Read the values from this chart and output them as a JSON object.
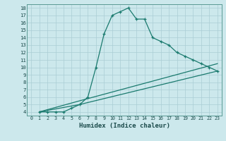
{
  "xlabel": "Humidex (Indice chaleur)",
  "ylabel": "",
  "bg_color": "#cce8ec",
  "grid_color": "#aacdd4",
  "line_color": "#1a7a6e",
  "xlim": [
    -0.5,
    23.5
  ],
  "ylim": [
    3.5,
    18.5
  ],
  "xticks": [
    0,
    1,
    2,
    3,
    4,
    5,
    6,
    7,
    8,
    9,
    10,
    11,
    12,
    13,
    14,
    15,
    16,
    17,
    18,
    19,
    20,
    21,
    22,
    23
  ],
  "yticks": [
    4,
    5,
    6,
    7,
    8,
    9,
    10,
    11,
    12,
    13,
    14,
    15,
    16,
    17,
    18
  ],
  "line1_x": [
    1,
    2,
    3,
    4,
    5,
    6,
    7,
    8,
    9,
    10,
    11,
    12,
    13,
    14,
    15,
    16,
    17,
    18,
    19,
    20,
    21,
    22,
    23
  ],
  "line1_y": [
    4,
    4,
    4,
    4,
    4.5,
    5,
    6,
    10,
    14.5,
    17,
    17.5,
    18,
    16.5,
    16.5,
    14,
    13.5,
    13,
    12,
    11.5,
    11,
    10.5,
    10,
    9.5
  ],
  "line2_x": [
    1,
    6,
    23
  ],
  "line2_y": [
    4,
    5.5,
    10.5
  ],
  "line3_x": [
    1,
    6,
    23
  ],
  "line3_y": [
    4,
    5.0,
    9.5
  ]
}
